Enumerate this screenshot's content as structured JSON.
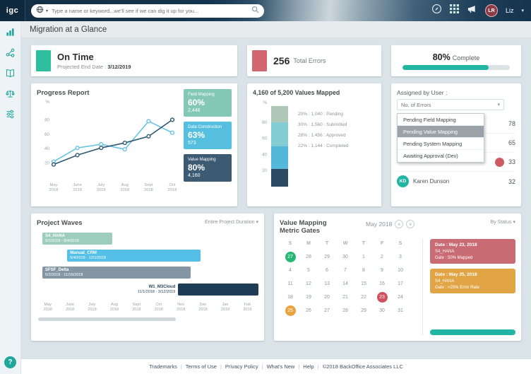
{
  "topbar": {
    "logo": "igc",
    "search_placeholder": "Type a name or keyword...we'll see if we can dig it up for you...",
    "user_initials": "LR",
    "user_name": "Liz"
  },
  "page": {
    "title": "Migration at a Glance"
  },
  "summary": {
    "on_time": {
      "title": "On Time",
      "subtitle_label": "Projected End Date :",
      "subtitle_value": "3/12/2019",
      "accent": "#2fbf9f"
    },
    "total_errors": {
      "value": "256",
      "label": "Total Errors",
      "accent": "#d2666e"
    },
    "complete": {
      "value": "80%",
      "label": "Complete",
      "percent": 80,
      "accent": "#23b5a4"
    }
  },
  "progress_report": {
    "title": "Progress Report",
    "badges": [
      {
        "label": "Field Mapping",
        "pct": "60%",
        "count": "2,446",
        "color": "#82c8b5"
      },
      {
        "label": "Data Construction",
        "pct": "63%",
        "count": "573",
        "color": "#56bfe0"
      },
      {
        "label": "Value Mapping",
        "pct": "80%",
        "count": "4,160",
        "color": "#3c5a72"
      }
    ]
  },
  "values_mapped": {
    "title": "4,160 of 5,200 Values Mapped"
  },
  "assigned": {
    "title": "Assigned by User :",
    "filter": "No. of Errors",
    "menu": [
      "Pending Field Mapping",
      "Pending Value Mapping",
      "Pending System Mapping",
      "Awaiting Approval (Dev)"
    ],
    "selected_index": 1,
    "rows": [
      {
        "count": "78"
      },
      {
        "count": "65"
      },
      {
        "count": "33",
        "dot_color": "#cf5a64"
      },
      {
        "initials": "KD",
        "avatar_color": "#23b5a4",
        "name": "Karen Dunson",
        "count": "32"
      }
    ]
  },
  "project_waves": {
    "title": "Project Waves",
    "filter": "Entire Project Duration"
  },
  "metric_gates": {
    "title_line1": "Value Mapping",
    "title_line2": "Metric Gates",
    "month": "May 2018",
    "filter": "By Status",
    "gates": [
      {
        "date": "Date : May 23, 2018",
        "system": "S4_HANA",
        "gate": "Gate : 50% Mapped",
        "color": "#c96b72"
      },
      {
        "date": "Date : May 25, 2018",
        "system": "S4_HANA",
        "gate": "Gate : >25% Error Rate",
        "color": "#e2a546"
      }
    ],
    "partial_gate_color": "#23b5a4"
  },
  "footer": {
    "links": [
      "Trademarks",
      "Terms of Use",
      "Privacy Policy",
      "What's New",
      "Help",
      "©2018 BackOffice Associates LLC"
    ]
  },
  "chart_data": [
    {
      "id": "progress_report",
      "type": "line",
      "title": "Progress Report",
      "x": [
        "May 2018",
        "June 2018",
        "July 2018",
        "Aug 2018",
        "Sept 2018",
        "Oct 2018"
      ],
      "ylabel": "%",
      "ylim": [
        0,
        100
      ],
      "yticks": [
        20,
        40,
        60,
        80
      ],
      "legend_position": "none",
      "series": [
        {
          "name": "light-blue",
          "color": "#66c4e4",
          "values": [
            22,
            41,
            46,
            39,
            78,
            62
          ]
        },
        {
          "name": "dark-blue",
          "color": "#2e5872",
          "values": [
            18,
            31,
            41,
            48,
            57,
            80
          ]
        }
      ]
    },
    {
      "id": "values_mapped",
      "type": "stacked-bar",
      "title": "4,160 of 5,200 Values Mapped",
      "ylabel": "%",
      "ylim": [
        0,
        100
      ],
      "yticks": [
        20,
        40,
        60,
        80
      ],
      "segments": [
        {
          "label": "Pending",
          "pct": 20,
          "count": "1,040",
          "color": "#aec7b6"
        },
        {
          "label": "Submitted",
          "pct": 30,
          "count": "1,560",
          "color": "#83ccd4"
        },
        {
          "label": "Approved",
          "pct": 28,
          "count": "1,456",
          "color": "#54b8da"
        },
        {
          "label": "Completed",
          "pct": 22,
          "count": "1,144",
          "color": "#2c4a61"
        }
      ]
    },
    {
      "id": "project_waves",
      "type": "gantt",
      "title": "Project Waves",
      "months": [
        "May 2018",
        "June 2018",
        "July 2018",
        "Aug 2018",
        "Sept 2018",
        "Oct 2018",
        "Nov 2018",
        "Dec 2018",
        "Jan 2019",
        "Feb 2019"
      ],
      "bars": [
        {
          "name": "S4_HANA",
          "range": "5/2/2018 - 8/4/2018",
          "start": 0,
          "end": 3.1,
          "color": "#9ccdbd",
          "label_outside": false
        },
        {
          "name": "Manual_CRM",
          "range": "6/4/2018 - 12/1/2018",
          "start": 1.1,
          "end": 7.0,
          "color": "#54c0e8",
          "label_outside": false
        },
        {
          "name": "SFSF_Delta",
          "range": "5/2/2018 - 11/16/2018",
          "start": 0,
          "end": 6.55,
          "color": "#8496a4",
          "label_outside": false
        },
        {
          "name": "W1_M3Cloud",
          "range": "11/1/2018 - 3/12/2019",
          "start": 6.0,
          "end": 9.7,
          "color": "#1e3c55",
          "label_outside": true
        }
      ]
    },
    {
      "id": "metric_gates_calendar",
      "type": "calendar",
      "month_label": "May 2018",
      "day_headers": [
        "S",
        "M",
        "T",
        "W",
        "T",
        "F",
        "S"
      ],
      "weeks": [
        [
          27,
          28,
          29,
          30,
          1,
          2,
          3
        ],
        [
          4,
          5,
          6,
          7,
          8,
          9,
          10
        ],
        [
          11,
          12,
          13,
          14,
          15,
          16,
          17
        ],
        [
          18,
          19,
          20,
          21,
          22,
          23,
          24
        ],
        [
          25,
          26,
          27,
          28,
          29,
          30,
          31
        ]
      ],
      "highlights": [
        {
          "week": 0,
          "col": 0,
          "day": 27,
          "color": "#29b573"
        },
        {
          "week": 3,
          "col": 5,
          "day": 23,
          "color": "#d0515e"
        },
        {
          "week": 4,
          "col": 0,
          "day": 25,
          "color": "#e8a33d"
        }
      ]
    }
  ]
}
